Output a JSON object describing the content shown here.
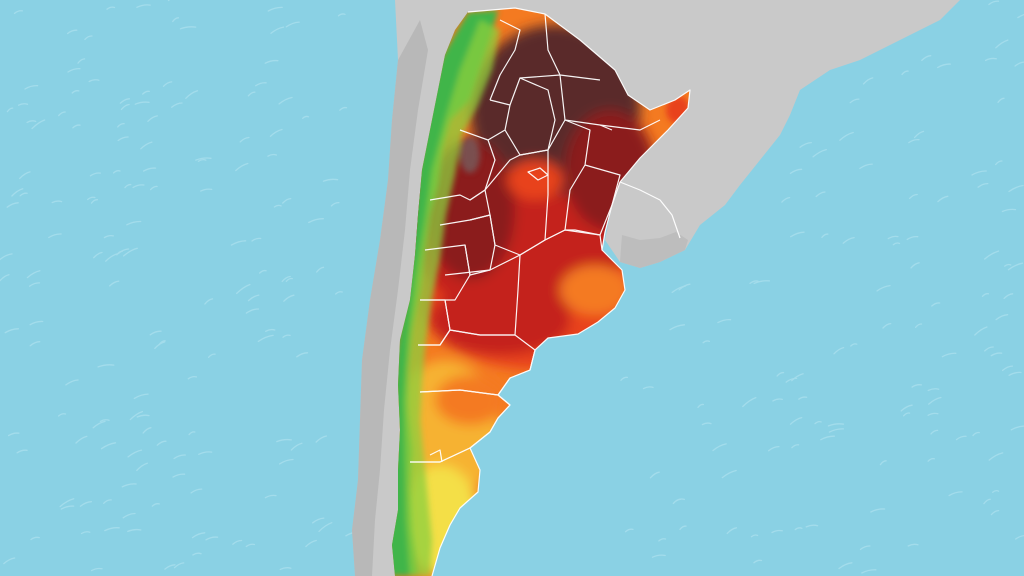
{
  "map": {
    "colors": {
      "ocean": "#8ad1e4",
      "ocean_wave": "#b8e6f2",
      "land_neutral": "#c9c9c9",
      "land_neutral_shade": "#b3b3b3",
      "border": "#ffffff",
      "heat_extreme": "#5a2a2a",
      "heat_very_high": "#8b1a1a",
      "heat_high": "#c4231d",
      "heat_medium_high": "#e8431c",
      "heat_medium": "#f47a21",
      "heat_low_medium": "#f6b233",
      "heat_low": "#f4df46",
      "cool": "#8ccf3c",
      "cold": "#3fb54a"
    },
    "layers": [
      "ocean-texture",
      "neighbor-land",
      "heat-field",
      "province-borders"
    ]
  }
}
